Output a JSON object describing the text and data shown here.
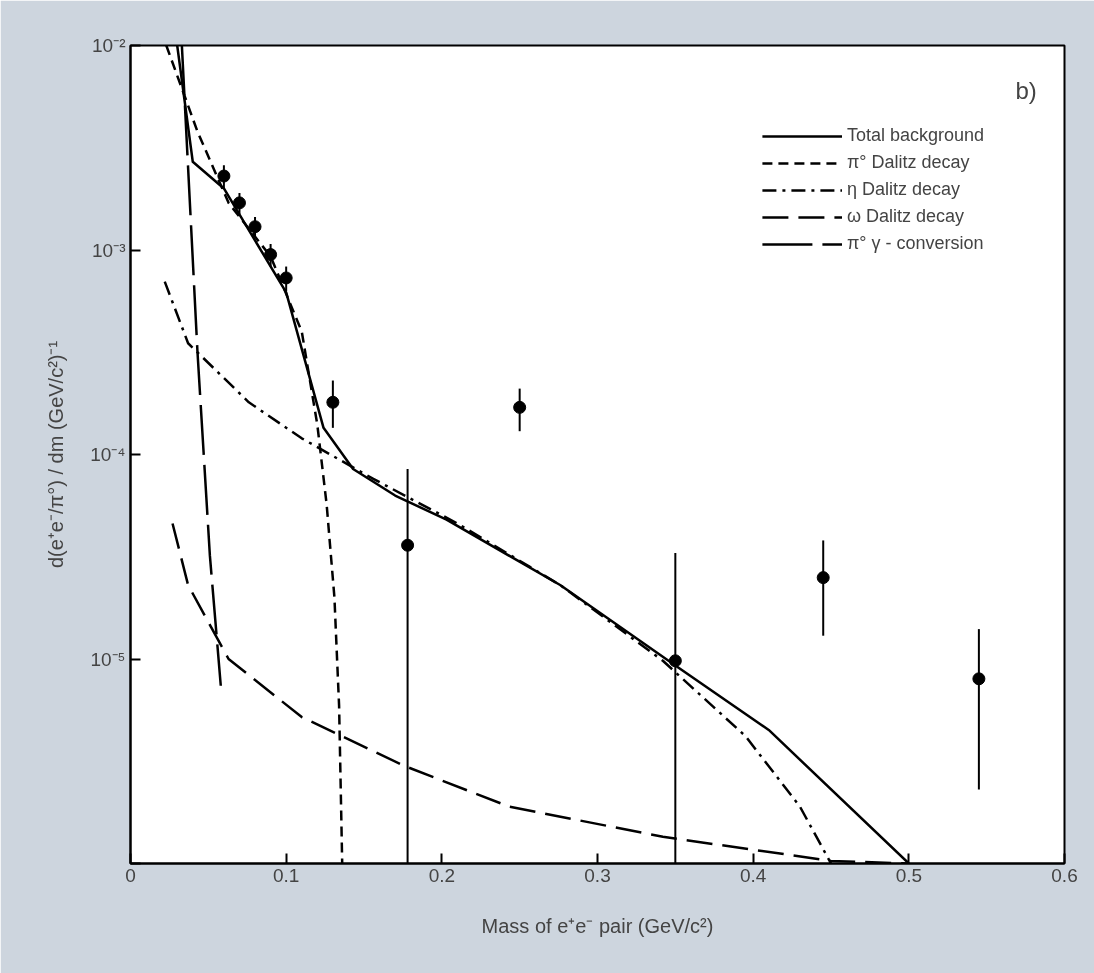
{
  "chart_data": {
    "type": "line",
    "xlabel": "Mass of e⁺e⁻ pair (GeV/c²)",
    "ylabel": "d(e⁺e⁻/π°) / dm (GeV/c²)⁻¹",
    "annotations": [
      "b)"
    ],
    "log": "y",
    "grid": false,
    "legend": "top right",
    "xlim": [
      0,
      0.6
    ],
    "xticks": [
      0,
      0.1,
      0.2,
      0.3,
      0.4,
      0.5,
      0.6
    ],
    "ylim": [
      1e-06,
      0.01
    ],
    "yticks": [
      {
        "value": 0.01,
        "label": "10⁻²"
      },
      {
        "value": 0.001,
        "label": "10⁻³"
      },
      {
        "value": 0.0001,
        "label": "10⁻⁴"
      },
      {
        "value": 1e-05,
        "label": "10⁻⁵"
      },
      {
        "value": 1e-06,
        "label": null
      }
    ],
    "series": [
      {
        "name": "Total background",
        "color": "#000000",
        "line_style": "solid",
        "x": [
          0.03,
          0.04,
          0.06,
          0.1,
          0.124,
          0.143,
          0.17,
          0.203,
          0.276,
          0.35,
          0.41,
          0.5
        ],
        "values": [
          0.01,
          0.0027,
          0.002,
          0.00062,
          0.000135,
          8.5e-05,
          6.3e-05,
          4.8e-05,
          2.3e-05,
          9.3e-06,
          4.5e-06,
          1e-06
        ]
      },
      {
        "name": "π° Dalitz decay",
        "color": "#000000",
        "line_style": "dashed",
        "x": [
          0.023,
          0.043,
          0.063,
          0.09,
          0.11,
          0.12,
          0.126,
          0.131,
          0.134,
          0.136
        ],
        "values": [
          0.01,
          0.0038,
          0.0017,
          0.00093,
          0.0004,
          0.00014,
          5.7e-05,
          2e-05,
          5.9e-06,
          1e-06
        ]
      },
      {
        "name": "η Dalitz decay",
        "color": "#000000",
        "line_style": "dashdot",
        "x": [
          0.022,
          0.037,
          0.076,
          0.11,
          0.156,
          0.21,
          0.276,
          0.342,
          0.395,
          0.43,
          0.45
        ],
        "values": [
          0.0007,
          0.00035,
          0.00018,
          0.00012,
          7.6e-05,
          4.6e-05,
          2.3e-05,
          9.8e-06,
          4.2e-06,
          1.9e-06,
          1e-06
        ]
      },
      {
        "name": "ω Dalitz decay",
        "color": "#000000",
        "line_style": "longdash",
        "x": [
          0.027,
          0.037,
          0.063,
          0.11,
          0.176,
          0.243,
          0.342,
          0.45,
          0.5
        ],
        "values": [
          4.6e-05,
          2.3e-05,
          1e-05,
          5.2e-06,
          3e-06,
          1.9e-06,
          1.35e-06,
          1.03e-06,
          1e-06
        ]
      },
      {
        "name": "π° γ - conversion",
        "color": "#000000",
        "line_style": "longerdash",
        "x": [
          0.033,
          0.043,
          0.051,
          0.058
        ],
        "values": [
          0.01,
          0.00032,
          3.2e-05,
          7.4e-06
        ]
      },
      {
        "type": "scatter",
        "marker": "circle",
        "color": "#000000",
        "x": [
          0.06,
          0.07,
          0.08,
          0.09,
          0.1,
          0.13,
          0.178,
          0.25,
          0.35,
          0.445,
          0.545
        ],
        "values": [
          0.0023,
          0.0017,
          0.0013,
          0.00095,
          0.00073,
          0.00018,
          3.6e-05,
          0.00017,
          9.8e-06,
          2.5e-05,
          8e-06
        ],
        "errors": [
          [
            0.002,
            0.0026
          ],
          [
            0.0015,
            0.0019
          ],
          [
            0.00115,
            0.00145
          ],
          [
            0.00083,
            0.00107
          ],
          [
            0.00063,
            0.00083
          ],
          [
            0.000135,
            0.00023
          ],
          [
            1e-06,
            8.5e-05
          ],
          [
            0.00013,
            0.00021
          ],
          [
            1e-06,
            3.3e-05
          ],
          [
            1.3e-05,
            3.8e-05
          ],
          [
            2.3e-06,
            1.4e-05
          ]
        ]
      }
    ]
  }
}
